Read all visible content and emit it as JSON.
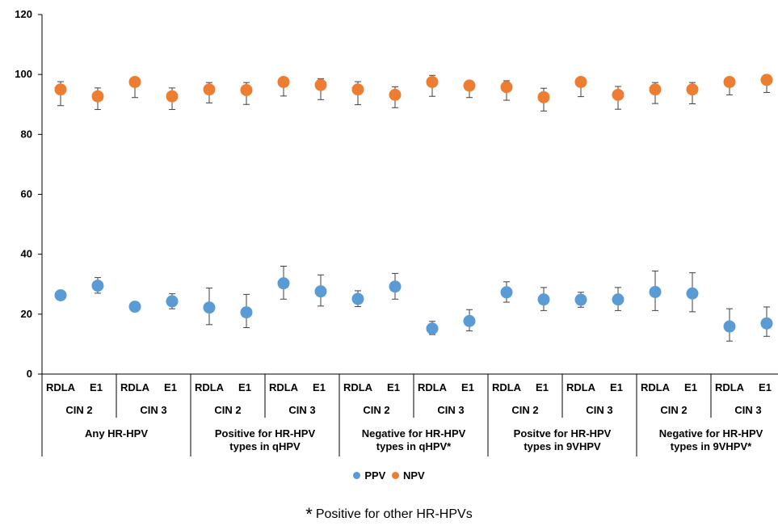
{
  "chart_data": {
    "type": "scatter",
    "title": "",
    "ylim": [
      0,
      120
    ],
    "yticks": [
      0,
      20,
      40,
      60,
      80,
      100,
      120
    ],
    "assays": [
      "RDLA",
      "E1",
      "RDLA",
      "E1",
      "RDLA",
      "E1",
      "RDLA",
      "E1",
      "RDLA",
      "E1",
      "RDLA",
      "E1",
      "RDLA",
      "E1",
      "RDLA",
      "E1",
      "RDLA",
      "E1",
      "RDLA",
      "E1"
    ],
    "cin_groups": [
      "CIN 2",
      "CIN 3",
      "CIN 2",
      "CIN 3",
      "CIN 2",
      "CIN 3",
      "CIN 2",
      "CIN 3",
      "CIN 2",
      "CIN 3"
    ],
    "hpv_groups": [
      [
        "Any HR-HPV"
      ],
      [
        "Positive for HR-HPV",
        "types in qHPV"
      ],
      [
        "Negative for HR-HPV",
        "types in qHPV*"
      ],
      [
        "Positve for HR-HPV",
        "types in 9VHPV"
      ],
      [
        "Negative for HR-HPV",
        "types in 9VHPV*"
      ]
    ],
    "series": [
      {
        "name": "PPV",
        "color": "#5B9BD5",
        "values": [
          26.3,
          29.5,
          22.5,
          24.3,
          22.2,
          20.6,
          30.3,
          27.6,
          25.1,
          29.2,
          15.2,
          17.7,
          27.3,
          24.9,
          24.8,
          24.9,
          27.4,
          26.9,
          15.9,
          16.9
        ],
        "err_low": [
          26.3,
          27.0,
          22.5,
          21.8,
          16.5,
          15.5,
          25.0,
          22.7,
          22.5,
          25.0,
          13.2,
          14.4,
          24.0,
          21.2,
          22.3,
          21.2,
          21.2,
          20.8,
          11.0,
          12.6
        ],
        "err_high": [
          26.3,
          32.2,
          22.5,
          26.8,
          28.7,
          26.6,
          36.0,
          33.1,
          27.8,
          33.6,
          17.6,
          21.5,
          30.8,
          28.9,
          27.3,
          28.9,
          34.4,
          33.8,
          21.8,
          22.4
        ]
      },
      {
        "name": "NPV",
        "color": "#ED7D31",
        "values": [
          95.0,
          92.7,
          97.5,
          92.7,
          95.0,
          94.8,
          97.5,
          96.5,
          95.0,
          93.2,
          97.5,
          96.3,
          95.8,
          92.4,
          97.5,
          93.2,
          95.0,
          95.0,
          97.5,
          98.2
        ],
        "err_low": [
          89.6,
          88.3,
          92.3,
          88.3,
          90.5,
          90.0,
          92.8,
          91.6,
          89.9,
          88.9,
          92.7,
          92.3,
          91.4,
          87.8,
          92.6,
          88.4,
          90.3,
          90.2,
          93.2,
          94.0
        ],
        "err_high": [
          97.6,
          95.5,
          97.5,
          95.5,
          97.3,
          97.3,
          97.5,
          98.6,
          97.6,
          95.9,
          99.7,
          96.3,
          97.9,
          95.4,
          97.5,
          96.0,
          97.3,
          97.3,
          97.5,
          98.2
        ]
      }
    ],
    "legend": [
      "PPV",
      "NPV"
    ],
    "legend_position": "bottom",
    "grid": false
  },
  "footnote": {
    "star": "*",
    "text": "Positive for other HR-HPVs"
  }
}
